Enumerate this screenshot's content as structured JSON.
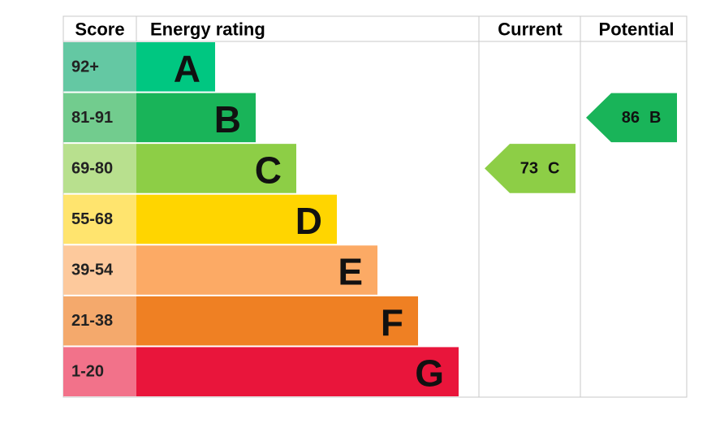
{
  "headers": {
    "score": "Score",
    "rating": "Energy rating",
    "current": "Current",
    "potential": "Potential"
  },
  "bands": [
    {
      "score": "92+",
      "letter": "A",
      "color": "#00c781",
      "score_color": "#64c8a3"
    },
    {
      "score": "81-91",
      "letter": "B",
      "color": "#19b459",
      "score_color": "#72cc8e"
    },
    {
      "score": "69-80",
      "letter": "C",
      "color": "#8dce46",
      "score_color": "#b8e08e"
    },
    {
      "score": "55-68",
      "letter": "D",
      "color": "#ffd500",
      "score_color": "#ffe46e"
    },
    {
      "score": "39-54",
      "letter": "E",
      "color": "#fcaa65",
      "score_color": "#fdc99c"
    },
    {
      "score": "21-38",
      "letter": "F",
      "color": "#ef8023",
      "score_color": "#f4a96c"
    },
    {
      "score": "1-20",
      "letter": "G",
      "color": "#e9153b",
      "score_color": "#f2728a"
    }
  ],
  "current": {
    "value": 73,
    "letter": "C"
  },
  "potential": {
    "value": 86,
    "letter": "B"
  }
}
